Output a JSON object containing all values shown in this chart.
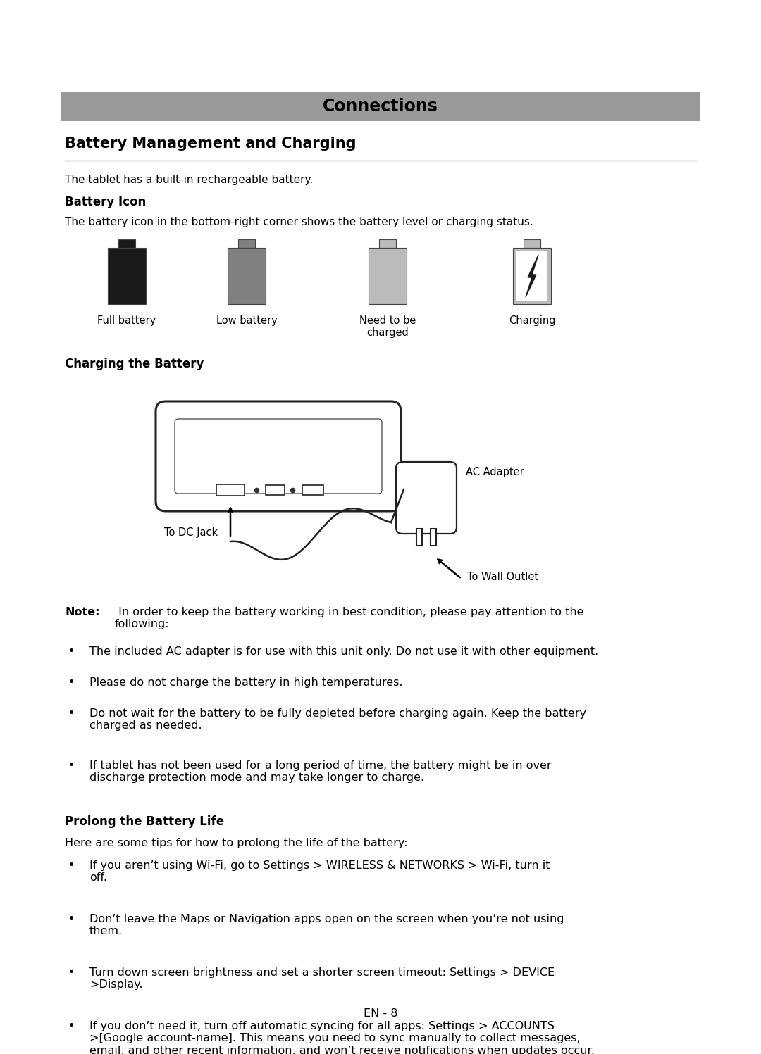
{
  "bg_color": "#ffffff",
  "header_bg": "#999999",
  "header_text": "Connections",
  "section1_title": "Battery Management and Charging",
  "intro_text": "The tablet has a built-in rechargeable battery.",
  "battery_icon_title": "Battery Icon",
  "battery_icon_desc": "The battery icon in the bottom-right corner shows the battery level or charging status.",
  "battery_labels": [
    "Full battery",
    "Low battery",
    "Need to be\ncharged",
    "Charging"
  ],
  "charging_title": "Charging the Battery",
  "note_text": " In order to keep the battery working in best condition, please pay attention to the following:",
  "bullets": [
    "The included AC adapter is for use with this unit only. Do not use it with other equipment.",
    "Please do not charge the battery in high temperatures.",
    "Do not wait for the battery to be fully depleted before charging again. Keep the battery\ncharged as needed.",
    "If tablet has not been used for a long period of time, the battery might be in over\ndischarge protection mode and may take longer to charge."
  ],
  "prolong_title": "Prolong the Battery Life",
  "prolong_intro": "Here are some tips for how to prolong the life of the battery:",
  "prolong_bullets": [
    [
      "If you aren’t using Wi-Fi, go to ",
      "Settings > WIRELESS & NETWORKS > Wi-Fi",
      ", turn it\noff."
    ],
    [
      "Don’t leave the Maps or Navigation apps open on the screen when you’re not using\nthem.",
      "",
      ""
    ],
    [
      "Turn down screen brightness and set a shorter screen timeout: ",
      "Settings > DEVICE\n>Display",
      "."
    ],
    [
      "If you don’t need it, turn off automatic syncing for all apps: ",
      "Settings > ACCOUNTS\n>[Google account-name]",
      ". This means you need to sync manually to collect messages,\nemail, and other recent information, and won’t receive notifications when updates occur."
    ]
  ],
  "footer": "EN - 8",
  "font_family": "DejaVu Sans"
}
